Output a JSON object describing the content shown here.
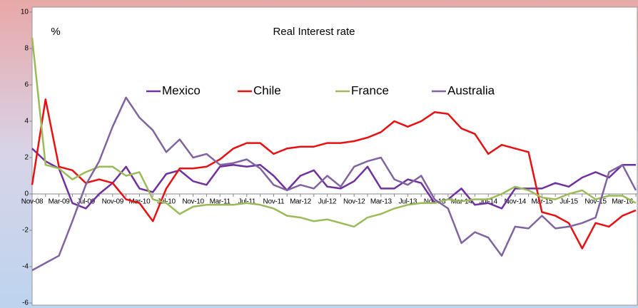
{
  "chart_data": {
    "type": "line",
    "title": "Real Interest rate",
    "y_label": "%",
    "categories": [
      "Nov-08",
      null,
      "Mar-09",
      null,
      "Jul-09",
      null,
      "Nov-09",
      null,
      "Mar-10",
      null,
      "Jul-10",
      null,
      "Nov-10",
      null,
      "Mar-11",
      null,
      "Jul-11",
      null,
      "Nov-11",
      null,
      "Mar-12",
      null,
      "Jul-12",
      null,
      "Nov-12",
      null,
      "Mar-13",
      null,
      "Jul-13",
      null,
      "Nov-13",
      null,
      "Mar-14",
      null,
      "Jul-14",
      null,
      "Nov-14",
      null,
      "Mar-15",
      null,
      "Jul-15",
      null,
      "Nov-15",
      null,
      "Mar-16",
      null
    ],
    "series": [
      {
        "name": "Mexico",
        "color": "#7030a0",
        "values": [
          2.5,
          1.8,
          1.4,
          -0.5,
          -0.8,
          0.0,
          0.6,
          1.5,
          0.3,
          0.1,
          1.1,
          1.3,
          0.7,
          0.5,
          1.5,
          1.6,
          1.5,
          1.6,
          1.0,
          0.2,
          1.0,
          1.3,
          0.4,
          0.3,
          0.7,
          1.5,
          0.3,
          0.3,
          0.8,
          0.6,
          -0.5,
          -0.3,
          0.3,
          -0.6,
          -0.5,
          -0.8,
          0.3,
          0.3,
          0.3,
          0.6,
          0.4,
          0.9,
          1.2,
          0.9,
          1.6,
          1.6
        ]
      },
      {
        "name": "Chile",
        "color": "#e81010",
        "values": [
          0.5,
          5.2,
          1.5,
          1.3,
          0.6,
          0.8,
          0.6,
          -0.3,
          -0.5,
          -1.5,
          0.3,
          1.4,
          1.4,
          1.5,
          1.9,
          2.5,
          2.8,
          2.8,
          2.2,
          2.5,
          2.6,
          2.6,
          2.8,
          2.8,
          2.9,
          3.1,
          3.4,
          4.0,
          3.7,
          4.0,
          4.5,
          4.4,
          3.6,
          3.3,
          2.2,
          2.7,
          2.5,
          2.3,
          -1.0,
          -1.2,
          -1.6,
          -3.0,
          -1.6,
          -1.8,
          -1.2,
          -0.9
        ]
      },
      {
        "name": "France",
        "color": "#9bbb59",
        "values": [
          8.6,
          1.6,
          1.4,
          0.8,
          1.2,
          1.5,
          1.5,
          1.0,
          1.2,
          -0.3,
          -0.5,
          -1.1,
          -0.7,
          -0.6,
          -0.6,
          -0.6,
          -0.5,
          -0.6,
          -0.8,
          -1.2,
          -1.3,
          -1.5,
          -1.4,
          -1.6,
          -1.8,
          -1.3,
          -1.1,
          -0.8,
          -0.6,
          -0.5,
          -0.5,
          -0.3,
          -0.4,
          -0.3,
          -0.3,
          0.0,
          0.4,
          0.2,
          -0.2,
          -0.3,
          0.0,
          0.2,
          -0.3,
          -0.1,
          -0.1,
          -0.5
        ]
      },
      {
        "name": "Australia",
        "color": "#8064a2",
        "values": [
          -4.2,
          -3.8,
          -3.4,
          -1.5,
          0.5,
          1.8,
          3.7,
          5.3,
          4.2,
          3.5,
          2.3,
          3.0,
          2.0,
          2.2,
          1.6,
          1.7,
          1.9,
          1.4,
          0.5,
          0.2,
          0.5,
          0.3,
          1.0,
          0.4,
          1.5,
          1.8,
          2.0,
          0.8,
          0.5,
          1.0,
          -0.3,
          -0.8,
          -2.7,
          -2.1,
          -2.4,
          -3.4,
          -1.8,
          -1.9,
          -1.2,
          -1.9,
          -1.8,
          -1.6,
          -1.3,
          1.2,
          1.6,
          0.2
        ]
      }
    ],
    "ylim": [
      -6,
      10
    ],
    "yticks": [
      -6,
      -4,
      -2,
      0,
      2,
      4,
      6,
      8,
      10
    ],
    "grid": false
  }
}
